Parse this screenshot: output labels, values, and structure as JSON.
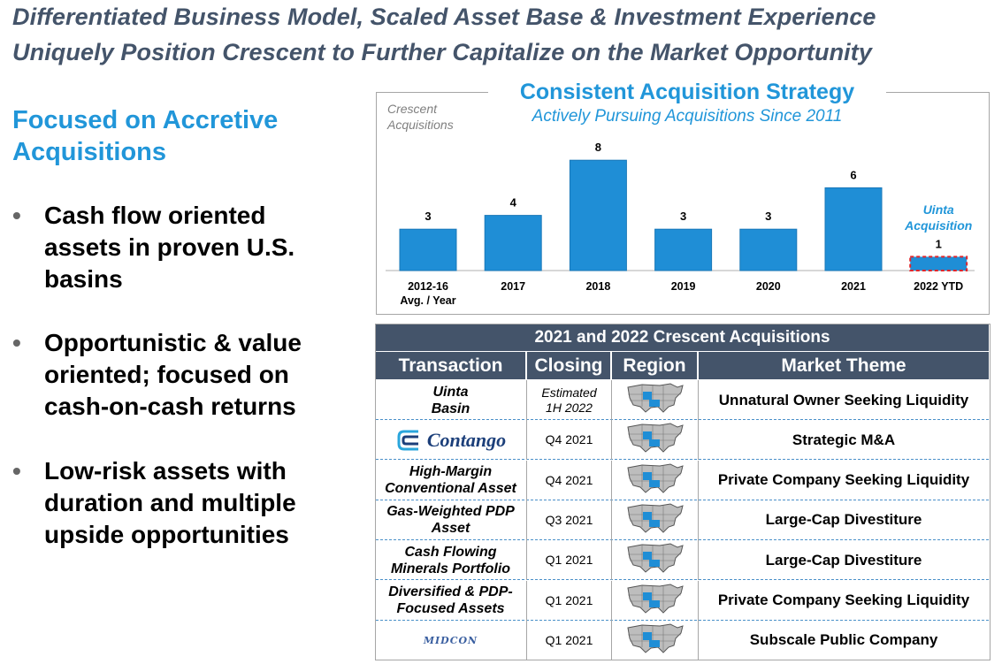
{
  "title": {
    "line1": "Differentiated Business Model, Scaled Asset Base & Investment Experience",
    "line2": "Uniquely Position Crescent to Further Capitalize on the Market Opportunity"
  },
  "left": {
    "heading": "Focused on Accretive Acquisitions",
    "bullet_char": "•",
    "bullets": [
      "Cash flow oriented assets in proven U.S. basins",
      "Opportunistic & value oriented; focused on cash-on-cash returns",
      "Low-risk assets with duration and multiple upside opportunities"
    ]
  },
  "chart_data": {
    "type": "bar",
    "title": "Consistent Acquisition Strategy",
    "subtitle": "Actively Pursuing Acquisitions Since 2011",
    "ylabel": "Crescent Acquisitions",
    "categories": [
      "2012-16 Avg. / Year",
      "2017",
      "2018",
      "2019",
      "2020",
      "2021",
      "2022 YTD"
    ],
    "category_lines": [
      [
        "2012-16",
        "Avg. / Year"
      ],
      [
        "2017"
      ],
      [
        "2018"
      ],
      [
        "2019"
      ],
      [
        "2020"
      ],
      [
        "2021"
      ],
      [
        "2022 YTD"
      ]
    ],
    "values": [
      3,
      4,
      8,
      3,
      3,
      6,
      1
    ],
    "ylim": [
      0,
      8
    ],
    "bar_color": "#1f8ed6",
    "highlight_color": "#e0262b",
    "annotation": "Uinta Acquisition",
    "annotation_category": "2022 YTD",
    "grid": false
  },
  "table": {
    "title": "2021 and 2022 Crescent Acquisitions",
    "headers": [
      "Transaction",
      "Closing",
      "Region",
      "Market Theme"
    ],
    "header_color": "#44546a",
    "rows": [
      {
        "transaction": "Uinta Basin",
        "closing": "Estimated 1H 2022",
        "region_icon": "us-map-icon",
        "theme": "Unnatural Owner Seeking Liquidity"
      },
      {
        "transaction": "Contango",
        "transaction_logo": "contango-logo-icon",
        "closing": "Q4 2021",
        "region_icon": "us-map-icon",
        "theme": "Strategic M&A"
      },
      {
        "transaction": "High-Margin Conventional Asset",
        "closing": "Q4 2021",
        "region_icon": "us-map-icon",
        "theme": "Private Company Seeking Liquidity"
      },
      {
        "transaction": "Gas-Weighted PDP Asset",
        "closing": "Q3 2021",
        "region_icon": "us-map-icon",
        "theme": "Large-Cap Divestiture"
      },
      {
        "transaction": "Cash Flowing Minerals Portfolio",
        "closing": "Q1 2021",
        "region_icon": "us-map-icon",
        "theme": "Large-Cap Divestiture"
      },
      {
        "transaction": "Diversified & PDP-Focused Assets",
        "closing": "Q1 2021",
        "region_icon": "us-map-icon",
        "theme": "Private Company Seeking Liquidity"
      },
      {
        "transaction": "MIDCON",
        "transaction_logo": "midcon-logo-icon",
        "closing": "Q1 2021",
        "region_icon": "us-map-icon",
        "theme": "Subscale Public Company"
      }
    ]
  }
}
